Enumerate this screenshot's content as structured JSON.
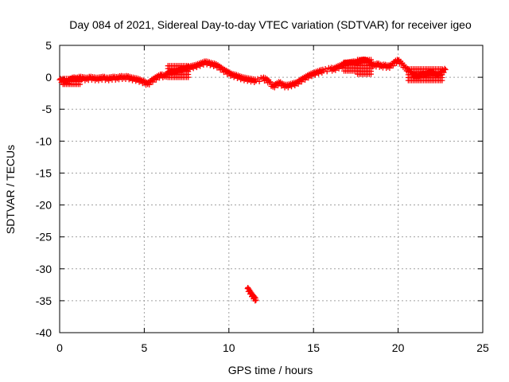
{
  "chart_data": {
    "type": "scatter",
    "title": "Day 084 of 2021, Sidereal Day-to-day VTEC variation (SDTVAR) for receiver igeo",
    "xlabel": "GPS time / hours",
    "ylabel": "SDTVAR / TECUs",
    "xlim": [
      0,
      25
    ],
    "ylim": [
      -40,
      5
    ],
    "xticks": [
      0,
      5,
      10,
      15,
      20,
      25
    ],
    "yticks": [
      5,
      0,
      -5,
      -10,
      -15,
      -20,
      -25,
      -30,
      -35,
      -40
    ],
    "grid": true,
    "marker": "plus",
    "colors": {
      "series": "#ff0000",
      "axis": "#000000",
      "grid": "#a0a0a0"
    },
    "series": [
      {
        "name": "SDTVAR",
        "points": [
          [
            0.0,
            -0.4
          ],
          [
            0.2,
            -0.7
          ],
          [
            0.4,
            -0.9
          ],
          [
            0.6,
            -0.5
          ],
          [
            0.8,
            -0.2
          ],
          [
            1.0,
            -0.3
          ],
          [
            1.2,
            -0.1
          ],
          [
            1.4,
            -0.2
          ],
          [
            1.6,
            -0.3
          ],
          [
            1.8,
            -0.1
          ],
          [
            2.0,
            -0.2
          ],
          [
            2.2,
            -0.3
          ],
          [
            2.4,
            -0.2
          ],
          [
            2.6,
            -0.1
          ],
          [
            2.8,
            -0.3
          ],
          [
            3.0,
            -0.2
          ],
          [
            3.2,
            -0.1
          ],
          [
            3.4,
            -0.2
          ],
          [
            3.6,
            0.0
          ],
          [
            3.8,
            -0.1
          ],
          [
            4.0,
            0.0
          ],
          [
            4.2,
            -0.2
          ],
          [
            4.4,
            -0.3
          ],
          [
            4.6,
            -0.4
          ],
          [
            4.8,
            -0.6
          ],
          [
            5.0,
            -0.8
          ],
          [
            5.2,
            -1.1
          ],
          [
            5.4,
            -0.7
          ],
          [
            5.6,
            -0.3
          ],
          [
            5.8,
            0.0
          ],
          [
            6.0,
            0.3
          ],
          [
            6.2,
            0.1
          ],
          [
            6.4,
            0.5
          ],
          [
            6.6,
            0.7
          ],
          [
            6.8,
            0.6
          ],
          [
            7.0,
            0.9
          ],
          [
            7.2,
            1.1
          ],
          [
            7.4,
            1.2
          ],
          [
            7.6,
            1.4
          ],
          [
            7.8,
            1.6
          ],
          [
            8.0,
            1.7
          ],
          [
            8.2,
            1.9
          ],
          [
            8.4,
            2.1
          ],
          [
            8.6,
            2.3
          ],
          [
            8.8,
            2.2
          ],
          [
            9.0,
            2.0
          ],
          [
            9.2,
            1.9
          ],
          [
            9.4,
            1.6
          ],
          [
            9.6,
            1.2
          ],
          [
            9.8,
            0.9
          ],
          [
            10.0,
            0.6
          ],
          [
            10.2,
            0.3
          ],
          [
            10.4,
            0.2
          ],
          [
            10.6,
            0.0
          ],
          [
            10.8,
            -0.2
          ],
          [
            11.0,
            -0.3
          ],
          [
            11.2,
            -0.4
          ],
          [
            11.4,
            -0.5
          ],
          [
            11.6,
            -0.6
          ],
          [
            12.0,
            -0.2
          ],
          [
            12.2,
            -0.4
          ],
          [
            12.4,
            -0.8
          ],
          [
            12.6,
            -1.5
          ],
          [
            12.8,
            -1.2
          ],
          [
            13.0,
            -0.9
          ],
          [
            13.2,
            -1.3
          ],
          [
            13.4,
            -1.4
          ],
          [
            13.6,
            -1.3
          ],
          [
            13.8,
            -1.1
          ],
          [
            14.0,
            -1.0
          ],
          [
            14.2,
            -0.6
          ],
          [
            14.4,
            -0.3
          ],
          [
            14.6,
            0.0
          ],
          [
            14.8,
            0.3
          ],
          [
            15.0,
            0.5
          ],
          [
            15.2,
            0.7
          ],
          [
            15.4,
            0.9
          ],
          [
            15.6,
            1.0
          ],
          [
            16.0,
            1.3
          ],
          [
            16.2,
            1.2
          ],
          [
            16.4,
            1.5
          ],
          [
            16.6,
            1.7
          ],
          [
            16.8,
            2.0
          ],
          [
            17.0,
            2.1
          ],
          [
            17.2,
            2.2
          ],
          [
            17.4,
            2.3
          ],
          [
            17.6,
            2.2
          ],
          [
            17.8,
            2.5
          ],
          [
            18.0,
            2.6
          ],
          [
            18.2,
            2.4
          ],
          [
            18.4,
            2.0
          ],
          [
            18.6,
            1.8
          ],
          [
            18.8,
            2.0
          ],
          [
            19.0,
            1.7
          ],
          [
            19.2,
            1.8
          ],
          [
            19.4,
            1.6
          ],
          [
            19.6,
            1.8
          ],
          [
            19.8,
            2.3
          ],
          [
            20.0,
            2.6
          ],
          [
            20.2,
            2.1
          ],
          [
            20.4,
            1.5
          ],
          [
            20.6,
            1.0
          ],
          [
            20.8,
            0.4
          ],
          [
            21.0,
            0.1
          ],
          [
            21.2,
            0.0
          ],
          [
            21.4,
            0.4
          ],
          [
            21.6,
            0.3
          ],
          [
            21.8,
            0.5
          ],
          [
            22.0,
            0.6
          ],
          [
            22.2,
            0.3
          ],
          [
            22.4,
            0.2
          ],
          [
            22.6,
            0.8
          ],
          [
            22.8,
            1.2
          ],
          [
            11.1,
            -33.1
          ],
          [
            11.2,
            -33.5
          ],
          [
            11.3,
            -33.9
          ],
          [
            11.4,
            -34.3
          ],
          [
            11.5,
            -34.6
          ],
          [
            11.6,
            -34.9
          ]
        ],
        "bands": [
          {
            "start": 17.6,
            "end": 18.4,
            "low": 0.5,
            "high": 3.0
          },
          {
            "start": 20.6,
            "end": 22.6,
            "low": -0.5,
            "high": 1.3
          },
          {
            "start": 0.2,
            "end": 1.2,
            "low": -1.1,
            "high": 0.1
          },
          {
            "start": 6.4,
            "end": 7.6,
            "low": 0.0,
            "high": 1.8
          },
          {
            "start": 16.8,
            "end": 17.6,
            "low": 1.0,
            "high": 2.6
          }
        ]
      }
    ]
  }
}
